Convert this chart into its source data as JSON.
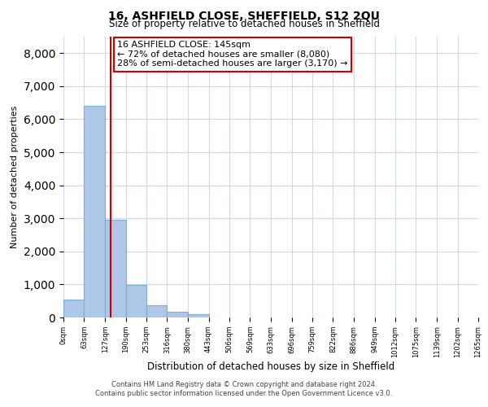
{
  "title": "16, ASHFIELD CLOSE, SHEFFIELD, S12 2QU",
  "subtitle": "Size of property relative to detached houses in Sheffield",
  "xlabel": "Distribution of detached houses by size in Sheffield",
  "ylabel": "Number of detached properties",
  "bar_edges": [
    0,
    63,
    127,
    190,
    253,
    316,
    380,
    443,
    506,
    569,
    633,
    696,
    759,
    822,
    886,
    949,
    1012,
    1075,
    1139,
    1202,
    1265
  ],
  "bar_heights": [
    550,
    6400,
    2950,
    980,
    380,
    175,
    100,
    0,
    0,
    0,
    0,
    0,
    0,
    0,
    0,
    0,
    0,
    0,
    0,
    0
  ],
  "bar_color": "#aec6e8",
  "bar_edgecolor": "#7ab0d4",
  "property_line_x": 145,
  "property_line_color": "#cc0000",
  "annotation_text": "16 ASHFIELD CLOSE: 145sqm\n← 72% of detached houses are smaller (8,080)\n28% of semi-detached houses are larger (3,170) →",
  "annotation_box_color": "#ffffff",
  "annotation_box_edgecolor": "#cc0000",
  "ylim": [
    0,
    8500
  ],
  "yticks": [
    0,
    1000,
    2000,
    3000,
    4000,
    5000,
    6000,
    7000,
    8000
  ],
  "tick_labels": [
    "0sqm",
    "63sqm",
    "127sqm",
    "190sqm",
    "253sqm",
    "316sqm",
    "380sqm",
    "443sqm",
    "506sqm",
    "569sqm",
    "633sqm",
    "696sqm",
    "759sqm",
    "822sqm",
    "886sqm",
    "949sqm",
    "1012sqm",
    "1075sqm",
    "1139sqm",
    "1202sqm",
    "1265sqm"
  ],
  "footer_line1": "Contains HM Land Registry data © Crown copyright and database right 2024.",
  "footer_line2": "Contains public sector information licensed under the Open Government Licence v3.0.",
  "background_color": "#ffffff",
  "grid_color": "#d0d8e8"
}
